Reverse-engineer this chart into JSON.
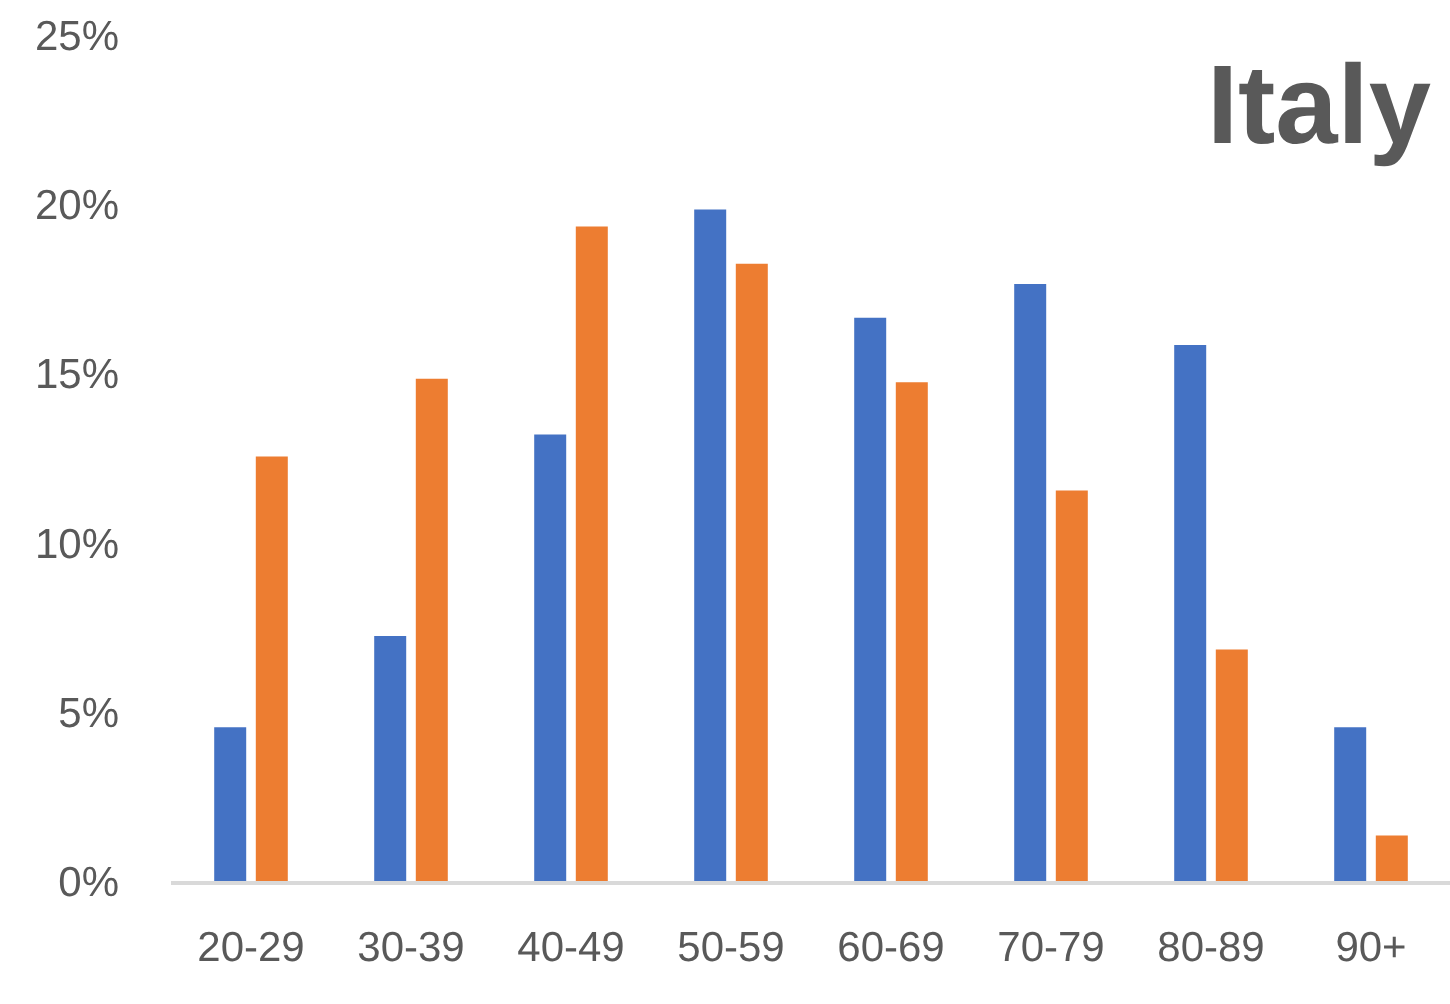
{
  "chart_data": {
    "type": "bar",
    "title": "Italy",
    "categories": [
      "20-29",
      "30-39",
      "40-49",
      "50-59",
      "60-69",
      "70-79",
      "80-89",
      "90+"
    ],
    "series": [
      {
        "color": "#4472c4",
        "values": [
          4.6,
          7.3,
          13.25,
          19.9,
          16.7,
          17.7,
          15.9,
          4.6
        ]
      },
      {
        "color": "#ed7d31",
        "values": [
          12.6,
          14.9,
          19.4,
          18.3,
          14.8,
          11.6,
          6.9,
          1.4
        ]
      }
    ],
    "ylim": [
      0,
      25
    ],
    "yticks": [
      {
        "value": 0,
        "label": "0%"
      },
      {
        "value": 5,
        "label": "5%"
      },
      {
        "value": 10,
        "label": "10%"
      },
      {
        "value": 15,
        "label": "15%"
      },
      {
        "value": 20,
        "label": "20%"
      },
      {
        "value": 25,
        "label": "25%"
      }
    ],
    "grid": false
  }
}
